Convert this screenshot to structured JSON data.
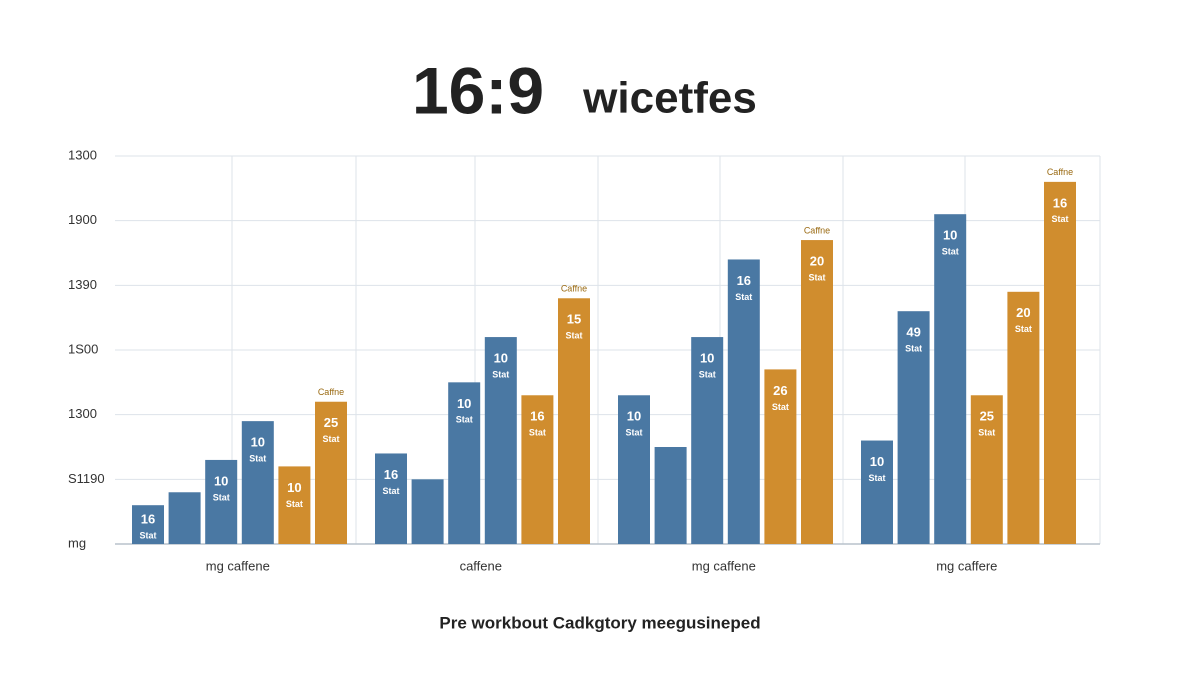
{
  "chart_data": {
    "type": "grouped-bar",
    "title": "16:9",
    "title_word": "wicetfes",
    "caption": "Pre workbout Cadkgtory meegusineped",
    "ylim": [
      0,
      6
    ],
    "yticks": [
      {
        "value": 0,
        "label": "mg"
      },
      {
        "value": 1,
        "label": "S1190"
      },
      {
        "value": 2,
        "label": "1300"
      },
      {
        "value": 3,
        "label": "1S00"
      },
      {
        "value": 4,
        "label": "1390"
      },
      {
        "value": 5,
        "label": "1900"
      },
      {
        "value": 6,
        "label": "1300"
      }
    ],
    "grid": true,
    "groups": [
      {
        "label": "mg caffene",
        "bars": [
          {
            "value": 0.6,
            "color": "#4a78a3",
            "tag": "16",
            "subtag": "Stat"
          },
          {
            "value": 0.8,
            "color": "#4a78a3"
          },
          {
            "value": 1.3,
            "color": "#4a78a3",
            "tag": "10",
            "subtag": "Stat"
          },
          {
            "value": 1.9,
            "color": "#4a78a3",
            "tag": "10",
            "subtag": "Stat"
          },
          {
            "value": 1.2,
            "color": "#d08d2e",
            "tag": "10",
            "subtag": "Stat"
          },
          {
            "value": 2.2,
            "color": "#d08d2e",
            "tag": "25",
            "subtag": "Stat",
            "note": "Caffne"
          }
        ]
      },
      {
        "label": "caffene",
        "bars": [
          {
            "value": 1.4,
            "color": "#4a78a3",
            "tag": "16",
            "subtag": "Stat"
          },
          {
            "value": 1.0,
            "color": "#4a78a3"
          },
          {
            "value": 2.5,
            "color": "#4a78a3",
            "tag": "10",
            "subtag": "Stat"
          },
          {
            "value": 3.2,
            "color": "#4a78a3",
            "tag": "10",
            "subtag": "Stat"
          },
          {
            "value": 2.3,
            "color": "#d08d2e",
            "tag": "16",
            "subtag": "Stat"
          },
          {
            "value": 3.8,
            "color": "#d08d2e",
            "tag": "15",
            "subtag": "Stat",
            "note": "Caffne"
          }
        ]
      },
      {
        "label": "mg caffene",
        "bars": [
          {
            "value": 2.3,
            "color": "#4a78a3",
            "tag": "10",
            "subtag": "Stat"
          },
          {
            "value": 1.5,
            "color": "#4a78a3"
          },
          {
            "value": 3.2,
            "color": "#4a78a3",
            "tag": "10",
            "subtag": "Stat"
          },
          {
            "value": 4.4,
            "color": "#4a78a3",
            "tag": "16",
            "subtag": "Stat"
          },
          {
            "value": 2.7,
            "color": "#d08d2e",
            "tag": "26",
            "subtag": "Stat"
          },
          {
            "value": 4.7,
            "color": "#d08d2e",
            "tag": "20",
            "subtag": "Stat",
            "note": "Caffne"
          }
        ]
      },
      {
        "label": "mg caffere",
        "bars": [
          {
            "value": 1.6,
            "color": "#4a78a3",
            "tag": "10",
            "subtag": "Stat"
          },
          {
            "value": 3.6,
            "color": "#4a78a3",
            "tag": "49",
            "subtag": "Stat"
          },
          {
            "value": 5.1,
            "color": "#4a78a3",
            "tag": "10",
            "subtag": "Stat"
          },
          {
            "value": 2.3,
            "color": "#d08d2e",
            "tag": "25",
            "subtag": "Stat"
          },
          {
            "value": 3.9,
            "color": "#d08d2e",
            "tag": "20",
            "subtag": "Stat"
          },
          {
            "value": 5.6,
            "color": "#d08d2e",
            "tag": "16",
            "subtag": "Stat",
            "note": "Caffne"
          }
        ]
      }
    ]
  }
}
